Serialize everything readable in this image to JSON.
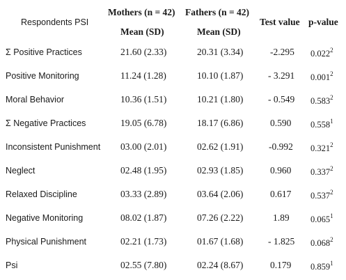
{
  "header": {
    "respondents_label": "Respondents PSI",
    "mothers_label": "Mothers (n = 42)",
    "fathers_label": "Fathers (n = 42)",
    "test_value_label": "Test value",
    "p_value_label": "p-value",
    "mothers_sub": "Mean (SD)",
    "fathers_sub": "Mean (SD)"
  },
  "rows": [
    {
      "label": "Σ Positive Practices",
      "mothers": "21.60 (2.33)",
      "fathers": "20.31 (3.34)",
      "test": "-2.295",
      "p": "0.022",
      "sup": "2"
    },
    {
      "label": "Positive Monitoring",
      "mothers": "11.24 (1.28)",
      "fathers": "10.10 (1.87)",
      "test": "- 3.291",
      "p": "0.001",
      "sup": "2"
    },
    {
      "label": "Moral Behavior",
      "mothers": "10.36 (1.51)",
      "fathers": "10.21 (1.80)",
      "test": "- 0.549",
      "p": "0.583",
      "sup": "2"
    },
    {
      "label": "Σ Negative Practices",
      "mothers": "19.05 (6.78)",
      "fathers": "18.17 (6.86)",
      "test": "0.590",
      "p": "0.558",
      "sup": "1"
    },
    {
      "label": "Inconsistent Punishment",
      "mothers": "03.00 (2.01)",
      "fathers": "02.62 (1.91)",
      "test": "-0.992",
      "p": "0.321",
      "sup": "2"
    },
    {
      "label": "Neglect",
      "mothers": "02.48 (1.95)",
      "fathers": "02.93 (1.85)",
      "test": "0.960",
      "p": "0.337",
      "sup": "2"
    },
    {
      "label": "Relaxed Discipline",
      "mothers": "03.33 (2.89)",
      "fathers": "03.64 (2.06)",
      "test": "0.617",
      "p": "0.537",
      "sup": "2"
    },
    {
      "label": "Negative Monitoring",
      "mothers": "08.02 (1.87)",
      "fathers": "07.26 (2.22)",
      "test": "1.89",
      "p": "0.065",
      "sup": "1"
    },
    {
      "label": "Physical Punishment",
      "mothers": "02.21 (1.73)",
      "fathers": "01.67 (1.68)",
      "test": "- 1.825",
      "p": "0.068",
      "sup": "2"
    },
    {
      "label": "Psi",
      "mothers": "02.55 (7.80)",
      "fathers": "02.24 (8.67)",
      "test": "0.179",
      "p": "0.859",
      "sup": "1"
    }
  ]
}
